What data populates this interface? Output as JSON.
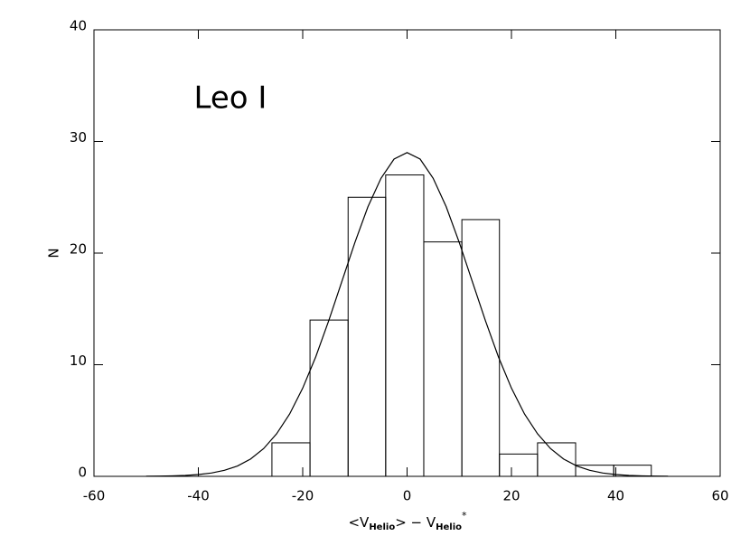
{
  "chart_data": {
    "type": "histogram",
    "annotation": "Leo I",
    "ylabel": "N",
    "xlabel": [
      "<V",
      "Helio",
      "> − V",
      "Helio",
      "*"
    ],
    "bins": [
      -25.9,
      -18.6,
      -11.3,
      -4.1,
      3.2,
      10.5,
      17.7,
      25.0,
      32.3,
      39.6,
      46.8
    ],
    "values": [
      3,
      14,
      25,
      27,
      21,
      23,
      2,
      3,
      1,
      1
    ],
    "color": "#000000",
    "curve": {
      "x": [
        -50,
        -47.5,
        -45,
        -42.5,
        -40,
        -37.5,
        -35,
        -32.5,
        -30,
        -27.5,
        -25,
        -22.5,
        -20,
        -17.5,
        -15,
        -12.5,
        -10,
        -7.5,
        -5,
        -2.5,
        0,
        2.5,
        5,
        7.5,
        10,
        12.5,
        15,
        17.5,
        20,
        22.5,
        25,
        27.5,
        30,
        32.5,
        35,
        37.5,
        40,
        42.5,
        45,
        47.5,
        50
      ],
      "values": [
        0.01,
        0.02,
        0.04,
        0.08,
        0.16,
        0.3,
        0.54,
        0.93,
        1.55,
        2.48,
        3.81,
        5.59,
        7.9,
        10.71,
        13.96,
        17.45,
        20.95,
        24.15,
        26.7,
        28.42,
        29,
        28.42,
        26.7,
        24.15,
        20.95,
        17.45,
        13.96,
        10.71,
        7.9,
        5.59,
        3.81,
        2.48,
        1.55,
        0.93,
        0.54,
        0.3,
        0.16,
        0.08,
        0.04,
        0.02,
        0.01
      ]
    },
    "xlim": [
      -60,
      60
    ],
    "xticks": [
      -60,
      -40,
      -20,
      0,
      20,
      40,
      60
    ],
    "ylim": [
      0,
      40
    ],
    "yticks": [
      0,
      10,
      20,
      30,
      40
    ]
  }
}
